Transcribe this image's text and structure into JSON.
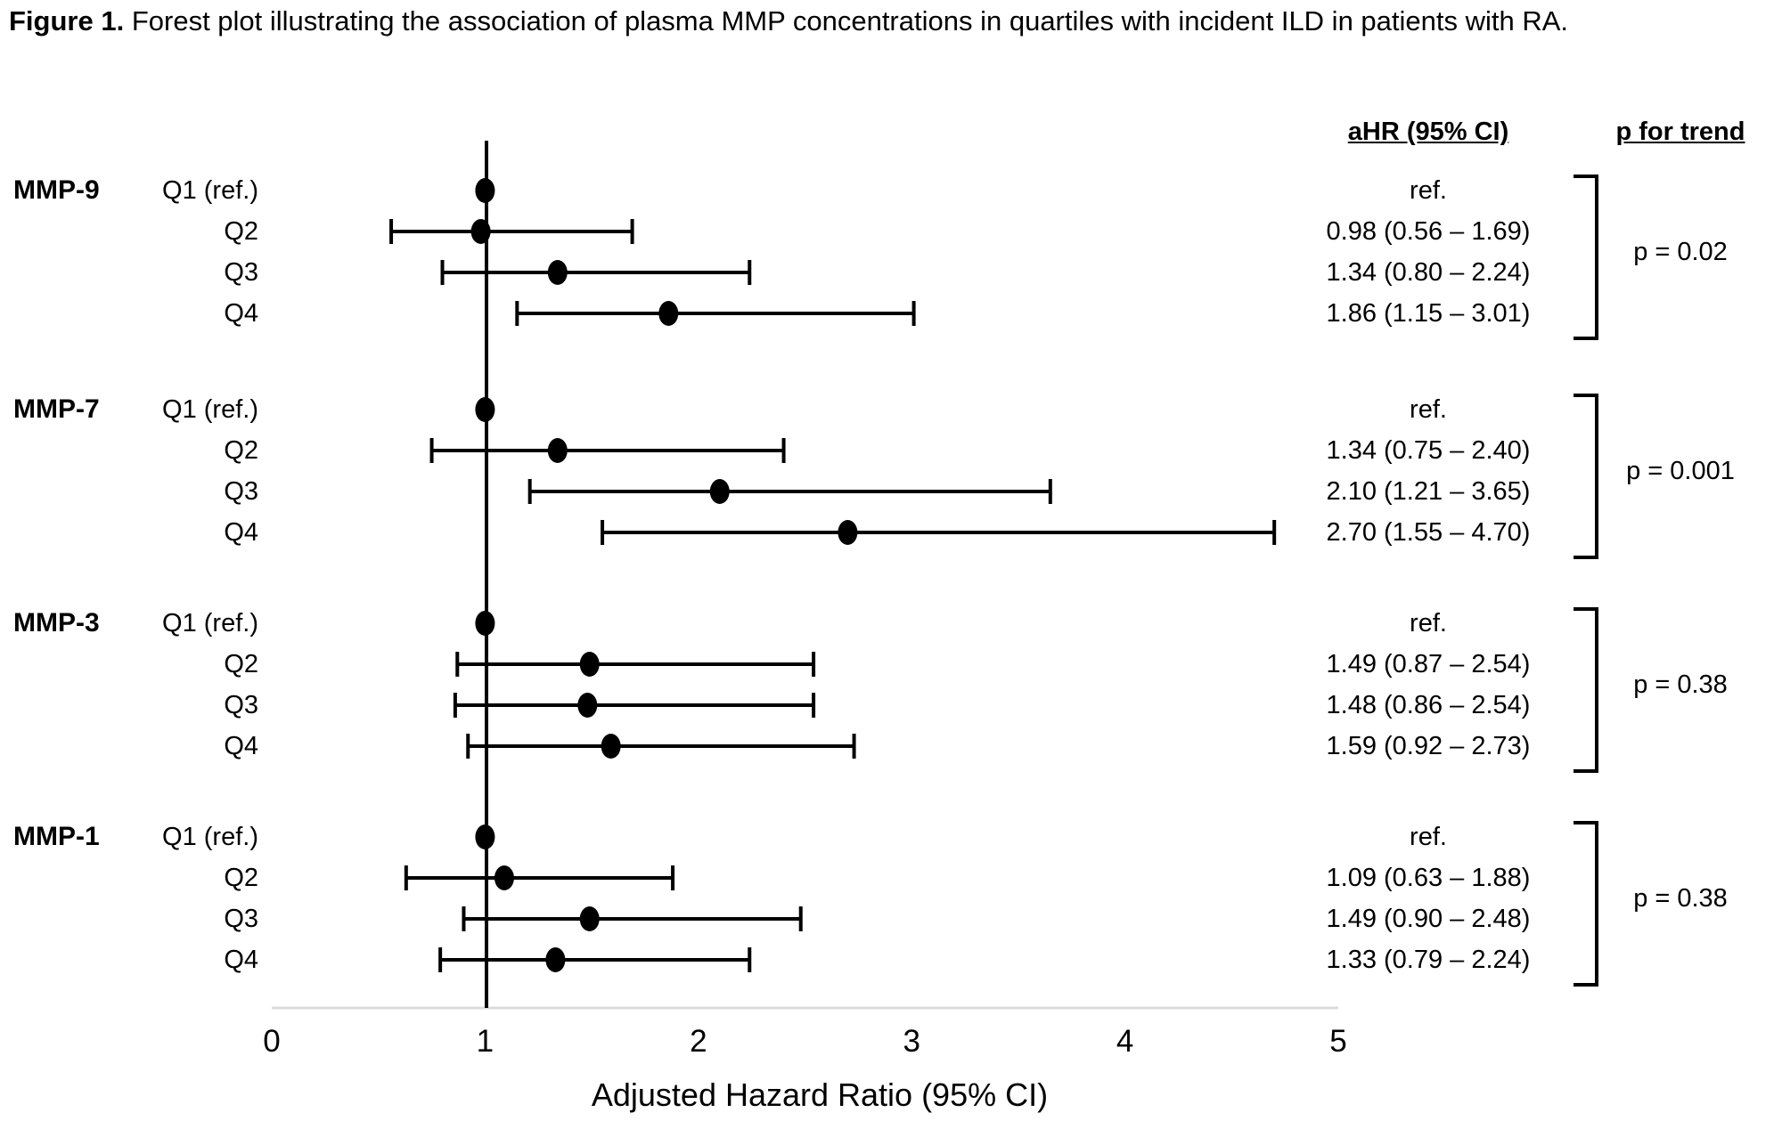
{
  "title": {
    "label": "Figure 1.",
    "text": "Forest plot illustrating the association of plasma MMP concentrations in quartiles with incident ILD in patients with RA."
  },
  "columns": {
    "ahr": "aHR (95% CI)",
    "p": "p for trend"
  },
  "chart_data": {
    "type": "forest",
    "xlabel": "Adjusted Hazard Ratio (95% CI)",
    "xlim": [
      0,
      5
    ],
    "x_ticks": [
      0,
      1,
      2,
      3,
      4,
      5
    ],
    "reference_line": 1,
    "grid": false,
    "marker_color": "#000000",
    "axis_color": "#dcdcdc",
    "groups": [
      {
        "name": "MMP-9",
        "p_for_trend": "p = 0.02",
        "rows": [
          {
            "label": "Q1 (ref.)",
            "ahr": "ref.",
            "est": 1.0,
            "lo": null,
            "hi": null
          },
          {
            "label": "Q2",
            "ahr": "0.98 (0.56 – 1.69)",
            "est": 0.98,
            "lo": 0.56,
            "hi": 1.69
          },
          {
            "label": "Q3",
            "ahr": "1.34 (0.80 – 2.24)",
            "est": 1.34,
            "lo": 0.8,
            "hi": 2.24
          },
          {
            "label": "Q4",
            "ahr": "1.86 (1.15 – 3.01)",
            "est": 1.86,
            "lo": 1.15,
            "hi": 3.01
          }
        ]
      },
      {
        "name": "MMP-7",
        "p_for_trend": "p = 0.001",
        "rows": [
          {
            "label": "Q1 (ref.)",
            "ahr": "ref.",
            "est": 1.0,
            "lo": null,
            "hi": null
          },
          {
            "label": "Q2",
            "ahr": "1.34 (0.75 – 2.40)",
            "est": 1.34,
            "lo": 0.75,
            "hi": 2.4
          },
          {
            "label": "Q3",
            "ahr": "2.10 (1.21 – 3.65)",
            "est": 2.1,
            "lo": 1.21,
            "hi": 3.65
          },
          {
            "label": "Q4",
            "ahr": "2.70 (1.55 – 4.70)",
            "est": 2.7,
            "lo": 1.55,
            "hi": 4.7
          }
        ]
      },
      {
        "name": "MMP-3",
        "p_for_trend": "p = 0.38",
        "rows": [
          {
            "label": "Q1 (ref.)",
            "ahr": "ref.",
            "est": 1.0,
            "lo": null,
            "hi": null
          },
          {
            "label": "Q2",
            "ahr": "1.49 (0.87 – 2.54)",
            "est": 1.49,
            "lo": 0.87,
            "hi": 2.54
          },
          {
            "label": "Q3",
            "ahr": "1.48 (0.86 – 2.54)",
            "est": 1.48,
            "lo": 0.86,
            "hi": 2.54
          },
          {
            "label": "Q4",
            "ahr": "1.59 (0.92 – 2.73)",
            "est": 1.59,
            "lo": 0.92,
            "hi": 2.73
          }
        ]
      },
      {
        "name": "MMP-1",
        "p_for_trend": "p = 0.38",
        "rows": [
          {
            "label": "Q1 (ref.)",
            "ahr": "ref.",
            "est": 1.0,
            "lo": null,
            "hi": null
          },
          {
            "label": "Q2",
            "ahr": "1.09 (0.63 – 1.88)",
            "est": 1.09,
            "lo": 0.63,
            "hi": 1.88
          },
          {
            "label": "Q3",
            "ahr": "1.49 (0.90 – 2.48)",
            "est": 1.49,
            "lo": 0.9,
            "hi": 2.48
          },
          {
            "label": "Q4",
            "ahr": "1.33 (0.79 – 2.24)",
            "est": 1.33,
            "lo": 0.79,
            "hi": 2.24
          }
        ]
      }
    ]
  }
}
